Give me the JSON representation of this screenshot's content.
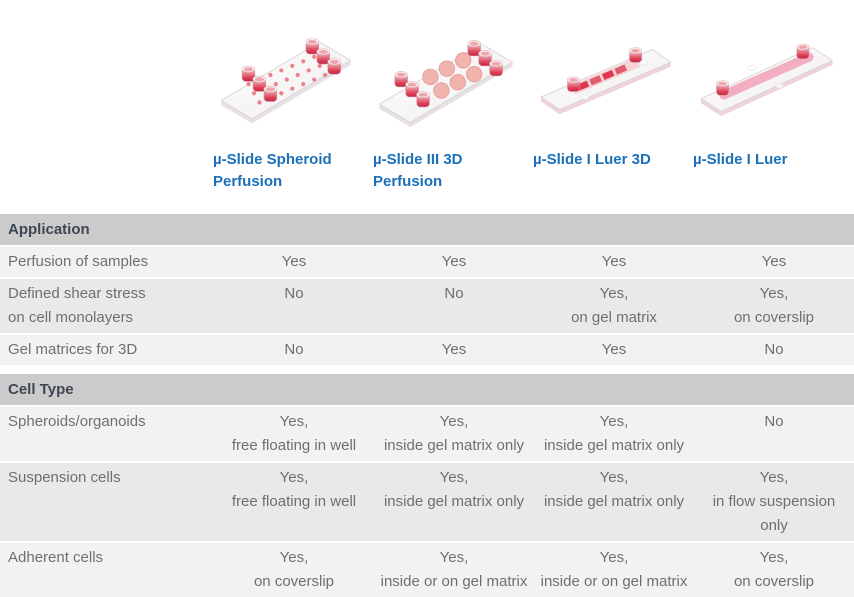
{
  "products": [
    {
      "name": "µ-Slide Spheroid Perfusion"
    },
    {
      "name": "µ-Slide III 3D Perfusion"
    },
    {
      "name": "µ-Slide I Luer 3D"
    },
    {
      "name": "µ-Slide I Luer"
    }
  ],
  "table": {
    "sections": [
      {
        "header": "Application",
        "rows": [
          {
            "feature": "Perfusion of samples",
            "values": [
              "Yes",
              "Yes",
              "Yes",
              "Yes"
            ]
          },
          {
            "feature": "Defined shear stress\non cell monolayers",
            "values": [
              "No",
              "No",
              "Yes,\non gel matrix",
              "Yes,\non coverslip"
            ]
          },
          {
            "feature": "Gel matrices for 3D",
            "values": [
              "No",
              "Yes",
              "Yes",
              "No"
            ]
          }
        ]
      },
      {
        "header": "Cell Type",
        "rows": [
          {
            "feature": "Spheroids/organoids",
            "values": [
              "Yes,\nfree floating in well",
              "Yes,\ninside gel matrix only",
              "Yes,\ninside gel matrix only",
              "No"
            ]
          },
          {
            "feature": "Suspension cells",
            "values": [
              "Yes,\nfree floating in well",
              "Yes,\ninside gel matrix only",
              "Yes,\ninside gel matrix only",
              "Yes,\nin flow suspension only"
            ]
          },
          {
            "feature": "Adherent cells",
            "values": [
              "Yes,\non coverslip",
              "Yes,\ninside or on gel matrix",
              "Yes,\ninside or on gel matrix",
              "Yes,\non coverslip"
            ]
          }
        ]
      }
    ]
  },
  "colors": {
    "link_blue": "#1a70b9",
    "section_header_bg": "#cbcbcb",
    "section_header_text": "#3e4753",
    "row_light_bg": "#f2f2f2",
    "row_dark_bg": "#e9e9e9",
    "cell_text": "#6f6f6f",
    "cap_red": "#d2284a",
    "well_pink": "#f0b3ad",
    "channel_pink": "#f2afc2"
  }
}
